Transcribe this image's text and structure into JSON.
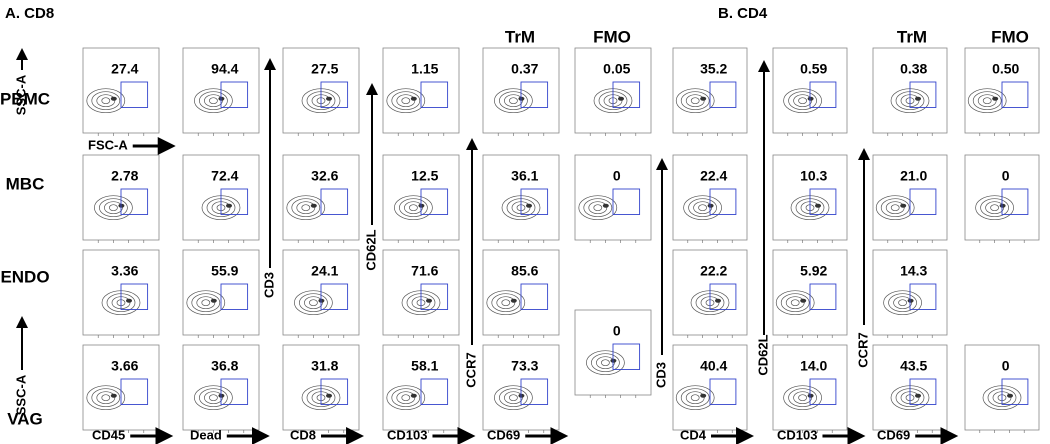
{
  "headers": [
    "A. CD8",
    "B. CD4"
  ],
  "column_headers": [
    "TrM",
    "FMO",
    "TrM",
    "FMO"
  ],
  "row_labels": [
    "PBMC",
    "MBC",
    "ENDO",
    "VAG"
  ],
  "axis_labels": [
    "SSC-A",
    "FSC-A",
    "SSC-A",
    "CD45",
    "Dead",
    "CD3",
    "CD8",
    "CD62L",
    "CD103",
    "CCR7",
    "CD69",
    "CD3",
    "CD4",
    "CD62L",
    "CD103",
    "CCR7",
    "CD69"
  ],
  "panels": [
    {
      "columns": [
        {
          "values": [
            "27.4",
            "2.78",
            "3.36",
            "3.66"
          ]
        },
        {
          "values": [
            "94.4",
            "72.4",
            "55.9",
            "36.8"
          ]
        },
        {
          "values": [
            "27.5",
            "32.6",
            "24.1",
            "31.8"
          ]
        },
        {
          "values": [
            "1.15",
            "12.5",
            "71.6",
            "58.1"
          ]
        },
        {
          "values": [
            "0.37",
            "36.1",
            "85.6",
            "73.3"
          ]
        },
        {
          "values": [
            "0.05",
            "0",
            "0"
          ]
        }
      ]
    },
    {
      "columns": [
        {
          "values": [
            "35.2",
            "22.4",
            "22.2",
            "40.4"
          ]
        },
        {
          "values": [
            "0.59",
            "10.3",
            "5.92",
            "14.0"
          ]
        },
        {
          "values": [
            "0.38",
            "21.0",
            "14.3",
            "43.5"
          ]
        },
        {
          "values": [
            "0.50",
            "0",
            "0"
          ]
        }
      ]
    }
  ]
}
